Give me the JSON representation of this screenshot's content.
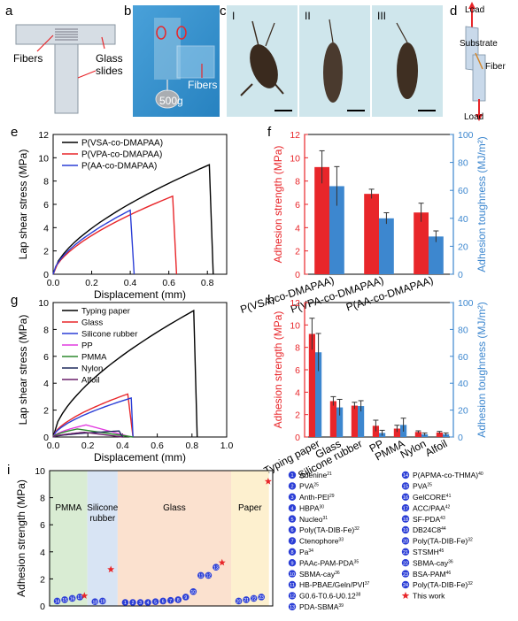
{
  "panels": {
    "a": {
      "letter": "a",
      "fibers": "Fibers",
      "glass": "Glass",
      "slides": "slides"
    },
    "b": {
      "letter": "b",
      "weight": "500g",
      "fibers": "Fibers"
    },
    "c": {
      "letter": "c",
      "sub": [
        "I",
        "II",
        "III"
      ]
    },
    "d": {
      "letter": "d",
      "load_top": "Load",
      "substrate": "Substrate",
      "fiber": "Fiber",
      "load_bottom": "Load"
    }
  },
  "chart_data": [
    {
      "id": "e",
      "letter": "e",
      "type": "line",
      "xlabel": "Displacement (mm)",
      "ylabel": "Lap shear stress (MPa)",
      "xlim": [
        0,
        0.9
      ],
      "ylim": [
        0,
        12
      ],
      "xticks": [
        "0.0",
        "0.2",
        "0.4",
        "0.6",
        "0.8"
      ],
      "yticks": [
        "0",
        "2",
        "4",
        "6",
        "8",
        "10",
        "12"
      ],
      "legend": "top-left",
      "series": [
        {
          "name": "P(VSA-co-DMAPAA)",
          "color": "#000000",
          "peak_x": 0.81,
          "peak_y": 9.4,
          "end_x": 0.83
        },
        {
          "name": "P(VPA-co-DMAPAA)",
          "color": "#e8262a",
          "peak_x": 0.62,
          "peak_y": 6.7,
          "end_x": 0.64
        },
        {
          "name": "P(AA-co-DMAPAA)",
          "color": "#2b3ed6",
          "peak_x": 0.4,
          "peak_y": 5.5,
          "end_x": 0.42
        }
      ]
    },
    {
      "id": "f",
      "letter": "f",
      "type": "bar",
      "categories": [
        "P(VSA-co-DMAPAA)",
        "P(VPA-co-DMAPAA)",
        "P(AA-co-DMAPAA)"
      ],
      "ylabel": "Adhesion strength (MPa)",
      "y2label": "Adhesion toughness (MJ/m²)",
      "ylim": [
        0,
        12
      ],
      "y2lim": [
        0,
        100
      ],
      "yticks": [
        "0",
        "2",
        "4",
        "6",
        "8",
        "10",
        "12"
      ],
      "y2ticks": [
        "0",
        "20",
        "40",
        "60",
        "80",
        "100"
      ],
      "series": [
        {
          "name": "Adhesion strength",
          "color": "#e8262a",
          "values": [
            9.2,
            6.9,
            5.3
          ],
          "errors": [
            1.4,
            0.4,
            0.8
          ]
        },
        {
          "name": "Adhesion toughness",
          "color": "#3d87cf",
          "axis": "right",
          "values": [
            63,
            40,
            27
          ],
          "errors": [
            14,
            4,
            4
          ]
        }
      ]
    },
    {
      "id": "g",
      "letter": "g",
      "type": "line",
      "xlabel": "Displacement (mm)",
      "ylabel": "Lap shear stress (MPa)",
      "xlim": [
        0,
        1.0
      ],
      "ylim": [
        0,
        10
      ],
      "xticks": [
        "0.0",
        "0.2",
        "0.4",
        "0.6",
        "0.8",
        "1.0"
      ],
      "yticks": [
        "0",
        "2",
        "4",
        "6",
        "8",
        "10"
      ],
      "legend": "top-left",
      "series": [
        {
          "name": "Typing paper",
          "color": "#000000",
          "peak_x": 0.81,
          "peak_y": 9.4,
          "end_x": 0.83
        },
        {
          "name": "Glass",
          "color": "#e8262a",
          "peak_x": 0.43,
          "peak_y": 3.2,
          "end_x": 0.46
        },
        {
          "name": "Silicone rubber",
          "color": "#2b3ed6",
          "peak_x": 0.45,
          "peak_y": 2.9,
          "end_x": 0.46
        },
        {
          "name": "PP",
          "color": "#e23be0",
          "peak_x": 0.19,
          "peak_y": 0.9,
          "end_x": 0.45
        },
        {
          "name": "PMMA",
          "color": "#2e8a2e",
          "peak_x": 0.14,
          "peak_y": 0.6,
          "end_x": 0.46
        },
        {
          "name": "Nylon",
          "color": "#1e2a5c",
          "peak_x": 0.38,
          "peak_y": 0.45,
          "end_x": 0.4
        },
        {
          "name": "Alfoil",
          "color": "#6a1e6a",
          "peak_x": 0.18,
          "peak_y": 0.35,
          "end_x": 0.4
        }
      ]
    },
    {
      "id": "h",
      "letter": "h",
      "type": "bar",
      "categories": [
        "Typing paper",
        "Glass",
        "Silicone rubber",
        "PP",
        "PMMA",
        "Nylon",
        "Alfoil"
      ],
      "ylabel": "Adhesion strength (MPa)",
      "y2label": "Adhesion toughness (MJ/m²)",
      "ylim": [
        0,
        12
      ],
      "y2lim": [
        0,
        100
      ],
      "yticks": [
        "0",
        "2",
        "4",
        "6",
        "8",
        "10",
        "12"
      ],
      "y2ticks": [
        "0",
        "20",
        "40",
        "60",
        "80",
        "100"
      ],
      "series": [
        {
          "name": "Adhesion strength",
          "color": "#e8262a",
          "values": [
            9.2,
            3.2,
            2.8,
            1.0,
            0.75,
            0.45,
            0.4
          ],
          "errors": [
            1.4,
            0.4,
            0.3,
            0.5,
            0.3,
            0.1,
            0.1
          ]
        },
        {
          "name": "Adhesion toughness",
          "color": "#3d87cf",
          "axis": "right",
          "values": [
            63,
            22,
            23,
            3,
            9,
            2,
            2
          ],
          "errors": [
            14,
            6,
            4,
            2,
            5,
            1,
            1
          ]
        }
      ]
    },
    {
      "id": "i",
      "letter": "i",
      "type": "scatter",
      "ylabel": "Adhesion strength (MPa)",
      "ylim": [
        0,
        10
      ],
      "yticks": [
        "0",
        "2",
        "4",
        "6",
        "8",
        "10"
      ],
      "regions": [
        {
          "label": [
            "PMMA"
          ],
          "color": "#d9ecd3",
          "from": 0,
          "to": 5
        },
        {
          "label": [
            "Silicone",
            "rubber"
          ],
          "color": "#d8e4f4",
          "from": 5,
          "to": 9
        },
        {
          "label": [
            "Glass"
          ],
          "color": "#fbe1cf",
          "from": 9,
          "to": 24
        },
        {
          "label": [
            "Paper"
          ],
          "color": "#fdf0cf",
          "from": 24,
          "to": 29
        }
      ],
      "points": [
        {
          "n": 14,
          "x": 1,
          "y": 0.1
        },
        {
          "n": 15,
          "x": 2,
          "y": 0.2
        },
        {
          "n": 16,
          "x": 3,
          "y": 0.3
        },
        {
          "n": 17,
          "x": 4,
          "y": 0.4
        },
        {
          "n": 18,
          "x": 6,
          "y": 0.05
        },
        {
          "n": 19,
          "x": 7,
          "y": 0.1
        },
        {
          "n": 1,
          "x": 10,
          "y": 0.0
        },
        {
          "n": 2,
          "x": 11,
          "y": 0.0
        },
        {
          "n": 3,
          "x": 12,
          "y": 0.0
        },
        {
          "n": 4,
          "x": 13,
          "y": 0.0
        },
        {
          "n": 5,
          "x": 14,
          "y": 0.05
        },
        {
          "n": 6,
          "x": 15,
          "y": 0.1
        },
        {
          "n": 7,
          "x": 16,
          "y": 0.15
        },
        {
          "n": 8,
          "x": 17,
          "y": 0.2
        },
        {
          "n": 9,
          "x": 18,
          "y": 0.4
        },
        {
          "n": 10,
          "x": 19,
          "y": 0.8
        },
        {
          "n": 11,
          "x": 20,
          "y": 2.0
        },
        {
          "n": 12,
          "x": 21,
          "y": 2.0
        },
        {
          "n": 13,
          "x": 22,
          "y": 2.6
        },
        {
          "n": 20,
          "x": 25,
          "y": 0.1
        },
        {
          "n": 21,
          "x": 26,
          "y": 0.2
        },
        {
          "n": 22,
          "x": 27,
          "y": 0.3
        },
        {
          "n": 23,
          "x": 28,
          "y": 0.4
        }
      ],
      "this_work": [
        {
          "x": 4.6,
          "y": 0.75
        },
        {
          "x": 8.1,
          "y": 2.7
        },
        {
          "x": 22.8,
          "y": 3.2
        },
        {
          "x": 28.9,
          "y": 9.2
        }
      ],
      "legend": [
        {
          "n": 1,
          "name": "Adenine",
          "ref": "21"
        },
        {
          "n": 2,
          "name": "PVA",
          "ref": "25"
        },
        {
          "n": 3,
          "name": "Anth-PEI",
          "ref": "29"
        },
        {
          "n": 4,
          "name": "HBPA",
          "ref": "30"
        },
        {
          "n": 5,
          "name": "Nucleo",
          "ref": "31"
        },
        {
          "n": 6,
          "name": "Poly(TA-DIB-Fe)",
          "ref": "32"
        },
        {
          "n": 7,
          "name": "Ctenophore",
          "ref": "33"
        },
        {
          "n": 8,
          "name": "Pa",
          "ref": "34"
        },
        {
          "n": 9,
          "name": "PAAc-PAM-PDA",
          "ref": "35"
        },
        {
          "n": 10,
          "name": "SBMA-cay",
          "ref": "36"
        },
        {
          "n": 11,
          "name": "HB-PBAE/Geln/PVI",
          "ref": "37"
        },
        {
          "n": 12,
          "name": "G0.6-T0.6-U0.12",
          "ref": "38"
        },
        {
          "n": 13,
          "name": "PDA-SBMA",
          "ref": "39"
        },
        {
          "n": 14,
          "name": "P(APMA-co-THMA)",
          "ref": "40"
        },
        {
          "n": 15,
          "name": "PVA",
          "ref": "25"
        },
        {
          "n": 16,
          "name": "GelCORE",
          "ref": "41"
        },
        {
          "n": 17,
          "name": "ACC/PAA",
          "ref": "42"
        },
        {
          "n": 18,
          "name": "SF-PDA",
          "ref": "43"
        },
        {
          "n": 19,
          "name": "DB24C8",
          "ref": "44"
        },
        {
          "n": 20,
          "name": "Poly(TA-DIB-Fe)",
          "ref": "32"
        },
        {
          "n": 21,
          "name": "STSMH",
          "ref": "45"
        },
        {
          "n": 22,
          "name": "SBMA-cay",
          "ref": "36"
        },
        {
          "n": 23,
          "name": "BSA-PAM",
          "ref": "46"
        },
        {
          "n": 24,
          "name": "Poly(TA-DIB-Fe)",
          "ref": "32"
        },
        {
          "n": "star",
          "name": "This work",
          "ref": ""
        }
      ]
    }
  ]
}
